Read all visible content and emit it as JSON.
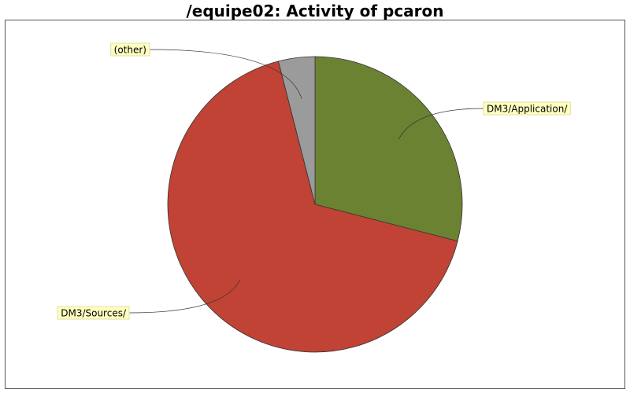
{
  "chart_data": {
    "type": "pie",
    "title": "/equipe02: Activity of pcaron",
    "slices": [
      {
        "label": "DM3/Application/",
        "value": 29.0,
        "color": "#6b8232"
      },
      {
        "label": "DM3/Sources/",
        "value": 67.0,
        "color": "#c04335"
      },
      {
        "label": "(other)",
        "value": 4.0,
        "color": "#9b9b9b"
      }
    ],
    "label_style": {
      "box_fill": "#ffffc0",
      "box_stroke": "#e0e0a0"
    },
    "start_angle": "top",
    "direction": "clockwise"
  }
}
